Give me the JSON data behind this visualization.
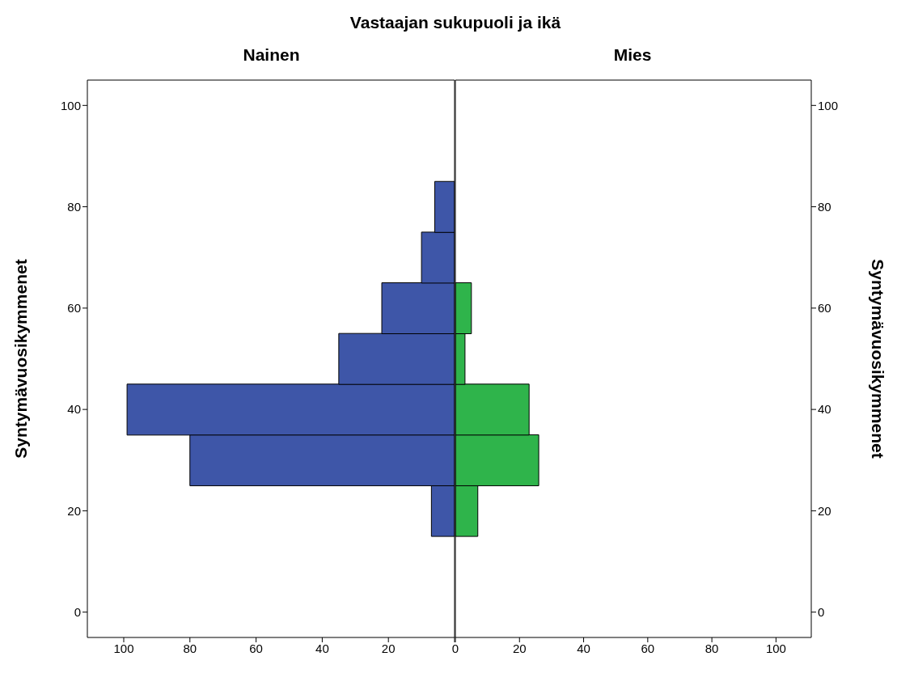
{
  "chart_data": [
    {
      "type": "histogram",
      "title": "Vastaajan sukupuoli ja ikä",
      "orientation": "horizontal",
      "ylabel": "Syntymävuosikymmenet",
      "bins": [
        15,
        25,
        35,
        45,
        55,
        65,
        75,
        85
      ],
      "series": [
        {
          "name": "Nainen",
          "color": "#3e56a8",
          "values": [
            7,
            80,
            99,
            35,
            22,
            10,
            6
          ]
        }
      ],
      "xlim": [
        111,
        0
      ],
      "xticks": [
        100,
        80,
        60,
        40,
        20,
        {
          "value": 0,
          "label": null
        }
      ],
      "ylim": [
        -5,
        105
      ],
      "yticks": [
        0,
        20,
        40,
        60,
        80,
        100
      ]
    },
    {
      "type": "histogram",
      "orientation": "horizontal",
      "ylabel": "Syntymävuosikymmenet",
      "bins": [
        15,
        25,
        35,
        45,
        55,
        65,
        75,
        85
      ],
      "series": [
        {
          "name": "Mies",
          "color": "#2fb44b",
          "values": [
            7,
            26,
            23,
            3,
            5,
            0,
            0
          ]
        }
      ],
      "xlim": [
        0,
        111
      ],
      "xticks": [
        0,
        20,
        40,
        60,
        80,
        100
      ],
      "ylim": [
        -5,
        105
      ],
      "yticks": [
        0,
        20,
        40,
        60,
        80,
        100
      ]
    }
  ]
}
